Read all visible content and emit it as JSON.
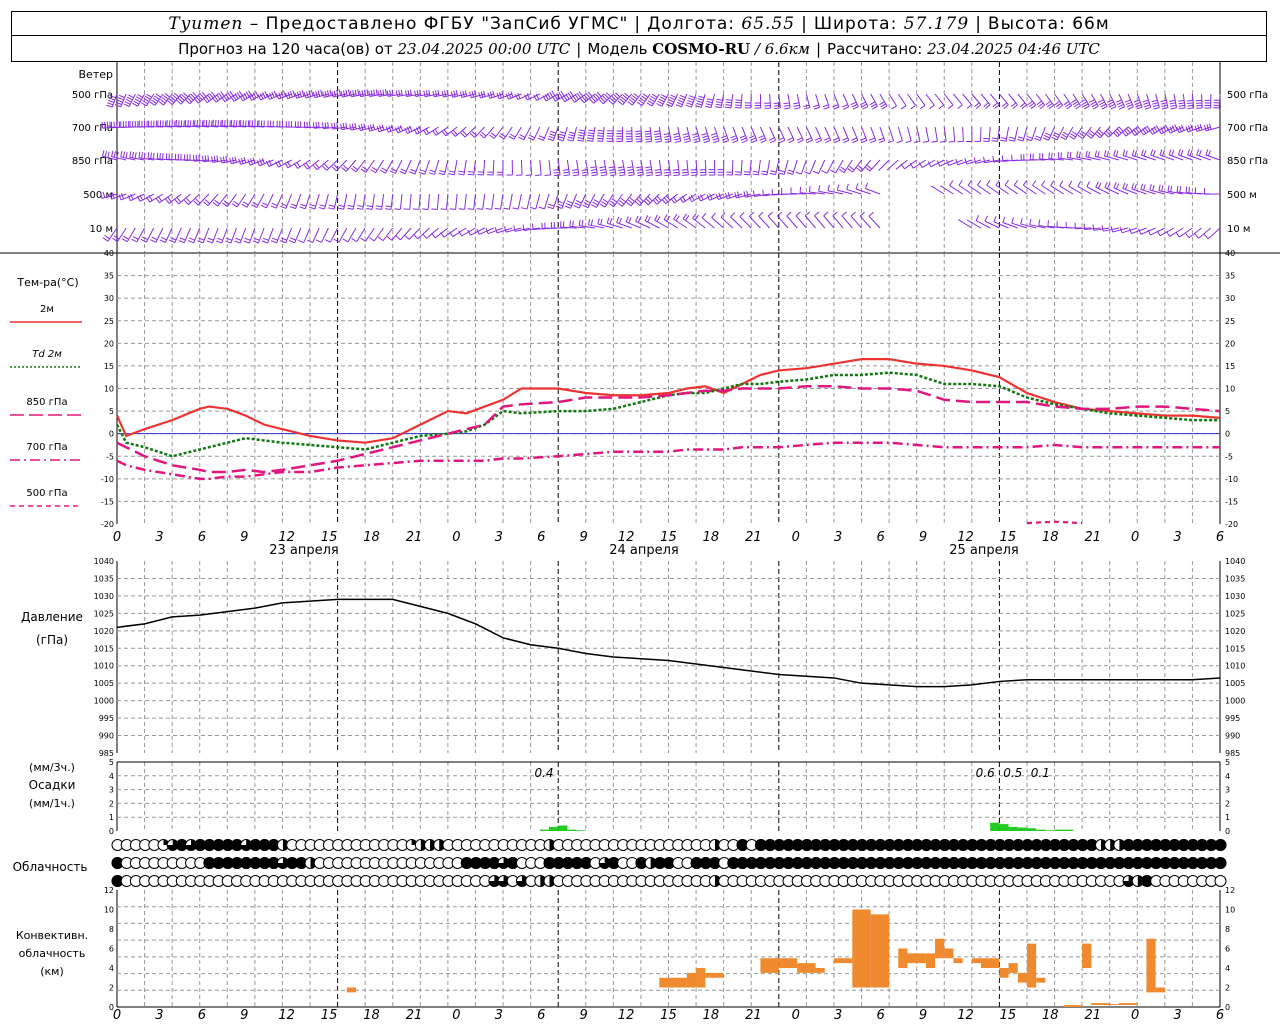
{
  "header": {
    "station": "Tyumen",
    "provider": "– Предоставлено ФГБУ \"ЗапСиб УГМС\"",
    "lon_label": "Долгота:",
    "lon": "65.55",
    "lat_label": "Широта:",
    "lat": "57.179",
    "alt_label": "Высота:",
    "alt": "66м",
    "forecast_label": "Прогноз на 120 часа(ов) от",
    "forecast_from": "23.04.2025 00:00 UTC",
    "model_label": "Модель",
    "model": "COSMO-RU",
    "model_res": "/ 6.6км",
    "calc_label": "Рассчитано:",
    "calc_time": "23.04.2025 04:46 UTC"
  },
  "colors": {
    "wind": "#8a2be2",
    "t2m": "#ee3333",
    "td2m": "#117711",
    "t850": "#e0177f",
    "t700": "#e0177f",
    "t500": "#e0177f",
    "zero_line": "#3333cc",
    "pressure": "#000000",
    "precip": "#22cc22",
    "convective": "#ef8a2e",
    "grid": "#999999"
  },
  "time_axis": {
    "hour_ticks": [
      "0",
      "3",
      "6",
      "9",
      "12",
      "15",
      "18",
      "21",
      "0",
      "3",
      "6",
      "9",
      "12",
      "15",
      "18",
      "21",
      "0",
      "3",
      "6",
      "9",
      "12",
      "15",
      "18",
      "21",
      "0",
      "3",
      "6"
    ],
    "day_labels": [
      "23 апреля",
      "24 апреля",
      "25 апреля"
    ]
  },
  "wind_panel": {
    "title": "Ветер",
    "levels": [
      "500 гПа",
      "700 гПа",
      "850 гПа",
      "500 м",
      "10  м"
    ]
  },
  "temp_panel": {
    "title": "Тем-ра(°C)",
    "legend": [
      {
        "label": "2м",
        "style": "solid",
        "color_key": "t2m"
      },
      {
        "label": "Td  2м",
        "style": "dotted",
        "color_key": "td2m"
      },
      {
        "label": "850 гПа",
        "style": "longdash",
        "color_key": "t850"
      },
      {
        "label": "700 гПа",
        "style": "dashdot",
        "color_key": "t700"
      },
      {
        "label": "500 гПа",
        "style": "dash",
        "color_key": "t500"
      }
    ]
  },
  "pressure_panel": {
    "title": "Давление",
    "unit": "(гПа)"
  },
  "precip_panel": {
    "unit_top": "(мм/3ч.)",
    "title": "Осадки",
    "unit_bottom": "(мм/1ч.)",
    "annotations": [
      {
        "hour": 47,
        "text": "0.4"
      },
      {
        "hour": 95,
        "text": "0.6"
      },
      {
        "hour": 98,
        "text": "0.5"
      },
      {
        "hour": 101,
        "text": "0.1"
      }
    ]
  },
  "cloud_panel": {
    "title": "Облачность",
    "rows": [
      "00000134344444344420000000000000122200000000000200000000000000000200404444444444444444444444444444444444444222444444444444",
      "40000000004444444434420000000000000000444434000444440340042440044404444444444444444444444444444444444444444444444444444444",
      "40000000000000000000000000000000000000000330302200000000000000000200000000000000000000000000000000000000000000324000000000"
    ]
  },
  "conv_panel": {
    "title_1": "Конвективн.",
    "title_2": "облачность",
    "unit": "(км)"
  },
  "chart_data": [
    {
      "type": "line",
      "title": "Тем-ра(°C)",
      "ylim": [
        -20,
        40
      ],
      "y_ticks": [
        "40",
        "35",
        "30",
        "25",
        "20",
        "15",
        "10",
        "5",
        "0",
        "-5",
        "-10",
        "-15",
        "-20"
      ],
      "x_hours": [
        0,
        1,
        3,
        6,
        9,
        10,
        12,
        14,
        16,
        18,
        21,
        24,
        27,
        30,
        33,
        36,
        38,
        40,
        42,
        44,
        48,
        51,
        54,
        57,
        60,
        62,
        64,
        66,
        68,
        70,
        72,
        75,
        78,
        81,
        84,
        87,
        90,
        93,
        96,
        99,
        102,
        105,
        108,
        111,
        114,
        117,
        120
      ],
      "series": [
        {
          "name": "2м",
          "values": [
            4,
            -0.5,
            1,
            3,
            5.5,
            6,
            5.5,
            4,
            2,
            1,
            -0.5,
            -1.5,
            -2,
            -1,
            2,
            5,
            4.5,
            6,
            7.5,
            10,
            10,
            9,
            8.5,
            8.5,
            9,
            10,
            10.5,
            9,
            11,
            13,
            14,
            14.5,
            15.5,
            16.5,
            16.5,
            15.5,
            15,
            14,
            12.5,
            9,
            7,
            5.5,
            5,
            4.5,
            4,
            4,
            3.5
          ]
        },
        {
          "name": "Td  2м",
          "values": [
            2,
            -2,
            -3,
            -5,
            -3.5,
            -3,
            -2,
            -1,
            -1.5,
            -2,
            -2.5,
            -3,
            -3.5,
            -2,
            -0.5,
            0,
            0.5,
            2,
            5,
            4.5,
            5,
            5,
            5.5,
            7,
            8.5,
            9,
            9,
            10,
            11,
            11,
            11.5,
            12,
            13,
            13,
            13.5,
            13,
            11,
            11,
            10.5,
            8,
            6.5,
            5.5,
            4.5,
            4,
            3.5,
            3,
            3
          ]
        },
        {
          "name": "850 гПа",
          "values": [
            -2,
            -3,
            -5,
            -7,
            -8,
            -8.5,
            -8.5,
            -8,
            -8.5,
            -8,
            -7,
            -6,
            -4.5,
            -3,
            -1.5,
            0,
            1,
            2,
            6,
            6.5,
            7,
            8,
            8,
            8,
            8.5,
            9,
            9.5,
            9.5,
            10,
            10,
            10,
            10.5,
            10.5,
            10,
            10,
            9.5,
            7.5,
            7,
            7,
            7,
            6,
            5.5,
            5.5,
            6,
            6,
            5.5,
            5
          ]
        },
        {
          "name": "700 гПа",
          "values": [
            -6,
            -7,
            -8,
            -9,
            -10,
            -10,
            -9.5,
            -9.5,
            -9,
            -8.5,
            -8.5,
            -7.5,
            -7,
            -6.5,
            -6,
            -6,
            -6,
            -6,
            -5.5,
            -5.5,
            -5,
            -4.5,
            -4,
            -4,
            -4,
            -3.5,
            -3.5,
            -3.5,
            -3,
            -3,
            -3,
            -2.5,
            -2,
            -2,
            -2,
            -2.5,
            -3,
            -3,
            -3,
            -3,
            -2.5,
            -3,
            -3,
            -3,
            -3,
            -3,
            -3
          ]
        },
        {
          "name": "500 гПа",
          "values": [
            null,
            null,
            null,
            null,
            null,
            null,
            null,
            null,
            null,
            null,
            null,
            null,
            null,
            null,
            null,
            null,
            null,
            null,
            null,
            null,
            null,
            null,
            null,
            null,
            null,
            null,
            null,
            null,
            null,
            null,
            null,
            null,
            null,
            null,
            null,
            null,
            null,
            null,
            null,
            null,
            null,
            null,
            null,
            null,
            null,
            null,
            null
          ],
          "extra_segment": {
            "x": [
              99,
              102,
              105
            ],
            "values": [
              -19.8,
              -19.5,
              -19.8
            ]
          }
        }
      ]
    },
    {
      "type": "line",
      "title": "Давление",
      "ylim": [
        985,
        1040
      ],
      "y_ticks": [
        "1040",
        "1035",
        "1030",
        "1025",
        "1020",
        "1015",
        "1010",
        "1005",
        "1000",
        "995",
        "990",
        "985"
      ],
      "x_hours": [
        0,
        3,
        6,
        9,
        12,
        15,
        18,
        21,
        24,
        27,
        30,
        33,
        36,
        39,
        42,
        45,
        48,
        51,
        54,
        57,
        60,
        63,
        66,
        69,
        72,
        75,
        78,
        81,
        84,
        87,
        90,
        93,
        96,
        99,
        102,
        105,
        108,
        111,
        114,
        117,
        120
      ],
      "series": [
        {
          "name": "",
          "values": [
            1021,
            1022,
            1024,
            1024.5,
            1025.5,
            1026.5,
            1028,
            1028.5,
            1029,
            1029,
            1029,
            1027,
            1025,
            1022,
            1018,
            1016,
            1015,
            1013.5,
            1012.5,
            1012,
            1011.5,
            1010.5,
            1009.5,
            1008.5,
            1007.5,
            1007,
            1006.5,
            1005,
            1004.5,
            1004,
            1004,
            1004.5,
            1005.5,
            1006,
            1006,
            1006,
            1006,
            1006,
            1006,
            1006,
            1006.5
          ]
        }
      ]
    },
    {
      "type": "bar",
      "title": "Осадки",
      "ylim": [
        0,
        5
      ],
      "y_ticks": [
        "5",
        "4",
        "3",
        "2",
        "1",
        "0"
      ],
      "x_hours": [
        46,
        47,
        48,
        49,
        50,
        51,
        95,
        96,
        97,
        98,
        99,
        100,
        101,
        102,
        103
      ],
      "values": [
        0.1,
        0.3,
        0.4,
        0.1,
        0.05,
        0,
        0.6,
        0.5,
        0.3,
        0.25,
        0.2,
        0.1,
        0.05,
        0.1,
        0.1
      ]
    },
    {
      "type": "bar",
      "title": "Конвективн. облачность",
      "ylim": [
        0,
        12
      ],
      "y_ticks": [
        "12",
        "10",
        "8",
        "6",
        "4",
        "2",
        "0"
      ],
      "bars": [
        {
          "x0": 25,
          "x1": 26,
          "bottom": 1.5,
          "top": 2
        },
        {
          "x0": 59,
          "x1": 62,
          "bottom": 2,
          "top": 3
        },
        {
          "x0": 62,
          "x1": 63,
          "bottom": 2,
          "top": 3.5
        },
        {
          "x0": 63,
          "x1": 64,
          "bottom": 2,
          "top": 4
        },
        {
          "x0": 64,
          "x1": 66,
          "bottom": 3,
          "top": 3.5
        },
        {
          "x0": 70,
          "x1": 72,
          "bottom": 3.5,
          "top": 5
        },
        {
          "x0": 72,
          "x1": 74,
          "bottom": 4,
          "top": 5
        },
        {
          "x0": 74,
          "x1": 76,
          "bottom": 3.5,
          "top": 4.5
        },
        {
          "x0": 76,
          "x1": 77,
          "bottom": 3.5,
          "top": 4
        },
        {
          "x0": 78,
          "x1": 80,
          "bottom": 4.5,
          "top": 5
        },
        {
          "x0": 80,
          "x1": 82,
          "bottom": 2,
          "top": 10
        },
        {
          "x0": 82,
          "x1": 84,
          "bottom": 2,
          "top": 9.5
        },
        {
          "x0": 85,
          "x1": 86,
          "bottom": 4,
          "top": 6
        },
        {
          "x0": 86,
          "x1": 88,
          "bottom": 4.5,
          "top": 5.5
        },
        {
          "x0": 88,
          "x1": 89,
          "bottom": 4,
          "top": 5.5
        },
        {
          "x0": 89,
          "x1": 90,
          "bottom": 5,
          "top": 7
        },
        {
          "x0": 90,
          "x1": 91,
          "bottom": 5,
          "top": 6
        },
        {
          "x0": 91,
          "x1": 92,
          "bottom": 4.5,
          "top": 5
        },
        {
          "x0": 93,
          "x1": 94,
          "bottom": 4.5,
          "top": 5
        },
        {
          "x0": 94,
          "x1": 96,
          "bottom": 4,
          "top": 5
        },
        {
          "x0": 96,
          "x1": 97,
          "bottom": 3,
          "top": 4
        },
        {
          "x0": 97,
          "x1": 98,
          "bottom": 3.5,
          "top": 4.5
        },
        {
          "x0": 98,
          "x1": 99,
          "bottom": 2.5,
          "top": 3.5
        },
        {
          "x0": 99,
          "x1": 100,
          "bottom": 2,
          "top": 6.5
        },
        {
          "x0": 100,
          "x1": 101,
          "bottom": 2.5,
          "top": 3
        },
        {
          "x0": 103,
          "x1": 105,
          "bottom": 0,
          "top": 0.2
        },
        {
          "x0": 105,
          "x1": 106,
          "bottom": 4,
          "top": 6.5
        },
        {
          "x0": 106,
          "x1": 108,
          "bottom": 0.2,
          "top": 0.4
        },
        {
          "x0": 108,
          "x1": 109,
          "bottom": 0.2,
          "top": 0.3
        },
        {
          "x0": 109,
          "x1": 111,
          "bottom": 0.2,
          "top": 0.4
        },
        {
          "x0": 112,
          "x1": 113,
          "bottom": 1.5,
          "top": 7
        },
        {
          "x0": 113,
          "x1": 114,
          "bottom": 1.5,
          "top": 2
        }
      ]
    }
  ]
}
